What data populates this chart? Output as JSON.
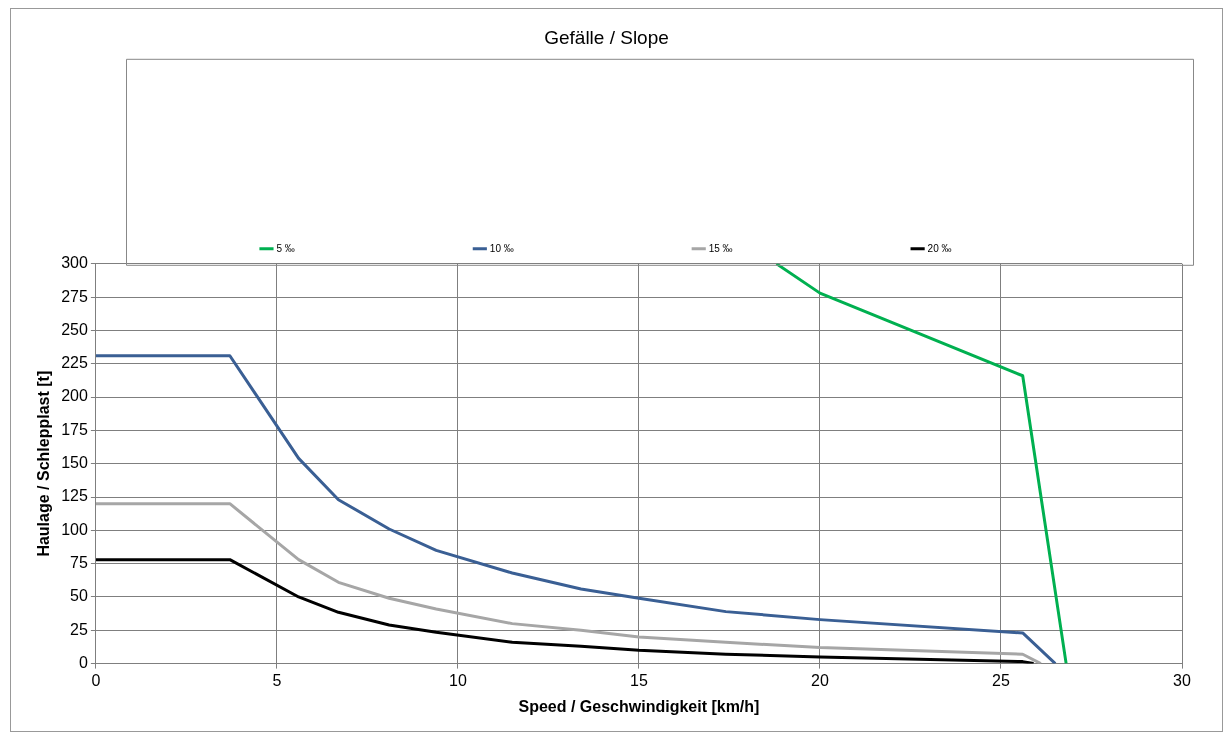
{
  "chart_data": {
    "type": "line",
    "title": "Gefälle / Slope",
    "xlabel": "Speed / Geschwindigkeit [km/h]",
    "ylabel": "Haulage / Schlepplast [t]",
    "xlim": [
      0,
      30
    ],
    "xticks": [
      0,
      5,
      10,
      15,
      20,
      25,
      30
    ],
    "ylim": [
      0,
      300
    ],
    "yticks": [
      0,
      25,
      50,
      75,
      100,
      125,
      150,
      175,
      200,
      225,
      250,
      275,
      300
    ],
    "grid": true,
    "legend": "top",
    "marker": "none",
    "line_style": "solid",
    "series": [
      {
        "name": "5 ‰",
        "color": "#00b050",
        "x": [
          18.8,
          20.0,
          25.6,
          26.8
        ],
        "values": [
          300,
          278,
          216,
          0
        ]
      },
      {
        "name": "10 ‰",
        "color": "#3a5f94",
        "x": [
          0,
          3.7,
          5.6,
          6.7,
          8.1,
          9.4,
          11.5,
          13.4,
          15,
          17.4,
          20,
          25.6,
          26.5
        ],
        "values": [
          231,
          231,
          154,
          123,
          101,
          85,
          68,
          56,
          49,
          39,
          33,
          23,
          0
        ]
      },
      {
        "name": "15 ‰",
        "color": "#a6a6a6",
        "x": [
          0,
          3.7,
          5.6,
          6.7,
          8.1,
          9.4,
          11.5,
          13.4,
          15,
          17.4,
          20,
          25.6,
          26.1
        ],
        "values": [
          120,
          120,
          78,
          61,
          49,
          41,
          30,
          25,
          20,
          16,
          12,
          7,
          0
        ]
      },
      {
        "name": "20 ‰",
        "color": "#000000",
        "x": [
          0,
          3.7,
          5.6,
          6.7,
          8.1,
          9.4,
          11.5,
          13.4,
          15,
          17.4,
          20,
          25.6,
          25.9
        ],
        "values": [
          78,
          78,
          50,
          38.5,
          29,
          23.5,
          16,
          13,
          10,
          7,
          5,
          1.5,
          0
        ]
      }
    ]
  }
}
